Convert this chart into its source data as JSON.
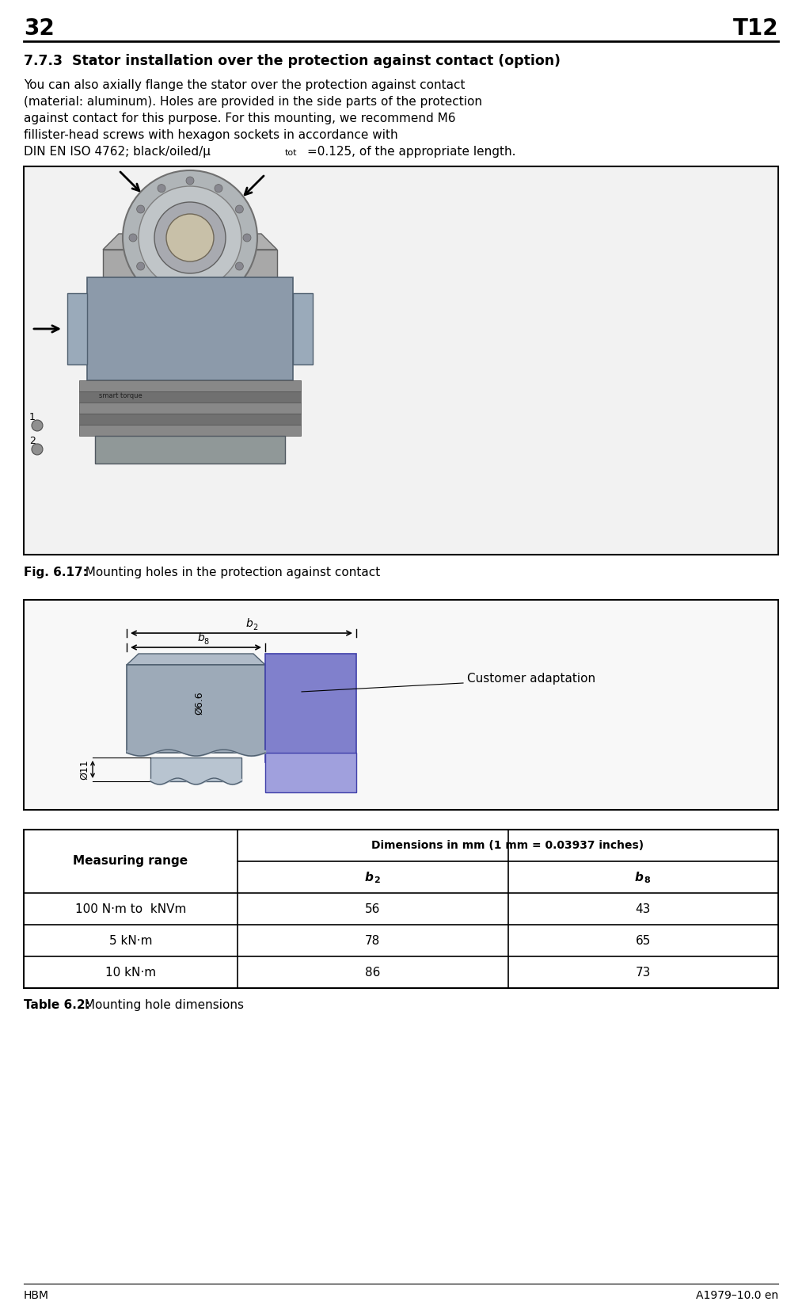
{
  "page_num": "32",
  "page_code": "T12",
  "section_title": "7.7.3  Stator installation over the protection against contact (option)",
  "body_text_line1": "You can also axially flange the stator over the protection against contact",
  "body_text_line2": "(material: aluminum). Holes are provided in the side parts of the protection",
  "body_text_line3": "against contact for this purpose. For this mounting, we recommend M6",
  "body_text_line4": "fillister-head screws with hexagon sockets in accordance with",
  "body_text_line5": "DIN EN ISO 4762; black/oiled/μ",
  "body_text_line5b": "tot",
  "body_text_line5c": "=0.125, of the appropriate length.",
  "fig_caption_bold": "Fig. 6.17:",
  "fig_caption_rest": "  Mounting holes in the protection against contact",
  "diagram_caption": "Customer adaptation",
  "dim_label_b2": "b",
  "dim_label_b2_sub": "2",
  "dim_label_b8": "b",
  "dim_label_b8_sub": "8",
  "dim_label_phi66": "Ø6.6",
  "dim_label_phi11": "Ø11",
  "table_title_bold": "Table 6.2:",
  "table_title_rest": " Mounting hole dimensions",
  "table_header_col1": "Measuring range",
  "table_header_col2": "Dimensions in mm (1 mm = 0.03937 inches)",
  "table_subheader_b2": "b",
  "table_subheader_b2_sub": "2",
  "table_subheader_b8": "b",
  "table_subheader_b8_sub": "8",
  "table_rows": [
    {
      "range": "100 N·m to  kNVm",
      "b2": "56",
      "b8": "43"
    },
    {
      "range": "5 kN·m",
      "b2": "78",
      "b8": "65"
    },
    {
      "range": "10 kN·m",
      "b2": "86",
      "b8": "73"
    }
  ],
  "footer_left": "HBM",
  "footer_right": "A1979–10.0 en",
  "bg_color": "#ffffff",
  "border_color": "#000000",
  "text_color": "#000000",
  "fig_box_bg": "#f2f2f2",
  "diag_box_bg": "#f8f8f8",
  "gray_main": "#9daab8",
  "gray_chamfer": "#b0bbc8",
  "gray_cyl": "#b8c4d0",
  "blue_main": "#8080cc",
  "blue_lower": "#a0a0dd",
  "wave_color": "#506070"
}
